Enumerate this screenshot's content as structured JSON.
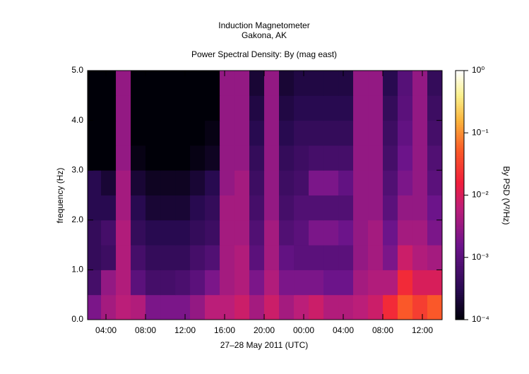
{
  "chart_data": {
    "type": "spectrogram",
    "title": "Induction Magnetometer",
    "subtitle": "Gakona, AK",
    "plot_title": "Power Spectral Density: By (mag east)",
    "x_label": "27–28 May 2011 (UTC)",
    "y_label": "frequency (Hz)",
    "colorbar_label": "By PSD (V²/Hz)",
    "xlim": [
      2.14,
      38
    ],
    "xticks": [
      {
        "value": 4,
        "label": "04:00"
      },
      {
        "value": 8,
        "label": "08:00"
      },
      {
        "value": 12,
        "label": "12:00"
      },
      {
        "value": 16,
        "label": "16:00"
      },
      {
        "value": 20,
        "label": "20:00"
      },
      {
        "value": 24,
        "label": "00:00"
      },
      {
        "value": 28,
        "label": "04:00"
      },
      {
        "value": 32,
        "label": "08:00"
      },
      {
        "value": 36,
        "label": "12:00"
      }
    ],
    "ylim": [
      0,
      5
    ],
    "yticks": [
      {
        "value": 0,
        "label": "0.0"
      },
      {
        "value": 1,
        "label": "1.0"
      },
      {
        "value": 2,
        "label": "2.0"
      },
      {
        "value": 3,
        "label": "3.0"
      },
      {
        "value": 4,
        "label": "4.0"
      },
      {
        "value": 5,
        "label": "5.0"
      }
    ],
    "zlim": [
      0.0001,
      1
    ],
    "zscale": "log",
    "zticks": [
      {
        "value": 0.0001,
        "label": "10⁻⁴"
      },
      {
        "value": 0.001,
        "label": "10⁻³"
      },
      {
        "value": 0.01,
        "label": "10⁻²"
      },
      {
        "value": 0.1,
        "label": "10⁻¹"
      },
      {
        "value": 1,
        "label": "10⁰"
      }
    ],
    "xbins": [
      2,
      3.5,
      5,
      6.5,
      8,
      9.5,
      11,
      12.5,
      14,
      15.5,
      17,
      18.5,
      20,
      21.5,
      23,
      24.5,
      26,
      27.5,
      29,
      30.5,
      32,
      33.5,
      35,
      36.5,
      38
    ],
    "ybins": [
      0,
      0.5,
      1,
      1.5,
      2,
      2.5,
      3,
      3.5,
      4,
      4.5,
      5
    ],
    "z": [
      [
        0.002,
        0.004,
        0.006,
        0.005,
        0.002,
        0.002,
        0.002,
        0.003,
        0.006,
        0.006,
        0.008,
        0.004,
        0.008,
        0.004,
        0.006,
        0.008,
        0.005,
        0.005,
        0.006,
        0.008,
        0.02,
        0.05,
        0.03,
        0.05
      ],
      [
        0.0006,
        0.003,
        0.005,
        0.001,
        0.0006,
        0.0006,
        0.0007,
        0.001,
        0.002,
        0.004,
        0.005,
        0.002,
        0.005,
        0.002,
        0.002,
        0.002,
        0.0015,
        0.0015,
        0.004,
        0.005,
        0.005,
        0.02,
        0.01,
        0.01
      ],
      [
        0.0004,
        0.0005,
        0.005,
        0.0006,
        0.0004,
        0.0004,
        0.0004,
        0.0006,
        0.0008,
        0.004,
        0.005,
        0.001,
        0.004,
        0.0012,
        0.001,
        0.001,
        0.001,
        0.001,
        0.003,
        0.004,
        0.002,
        0.008,
        0.005,
        0.004
      ],
      [
        0.0004,
        0.0006,
        0.005,
        0.0004,
        0.0003,
        0.0003,
        0.0003,
        0.0004,
        0.0005,
        0.004,
        0.004,
        0.0008,
        0.004,
        0.0008,
        0.001,
        0.002,
        0.002,
        0.0015,
        0.003,
        0.004,
        0.0015,
        0.004,
        0.004,
        0.002
      ],
      [
        0.0003,
        0.0003,
        0.004,
        0.0003,
        0.0002,
        0.0002,
        0.0002,
        0.0003,
        0.0004,
        0.004,
        0.004,
        0.0006,
        0.003,
        0.0006,
        0.0008,
        0.0008,
        0.0008,
        0.0008,
        0.003,
        0.003,
        0.001,
        0.003,
        0.003,
        0.0015
      ],
      [
        0.0003,
        0.0002,
        0.004,
        0.0002,
        0.00015,
        0.00015,
        0.00015,
        0.0002,
        0.0003,
        0.003,
        0.004,
        0.0005,
        0.003,
        0.0005,
        0.0006,
        0.002,
        0.002,
        0.0012,
        0.003,
        0.003,
        0.0008,
        0.002,
        0.003,
        0.001
      ],
      [
        0.0001,
        0.0001,
        0.003,
        0.00012,
        0.0001,
        0.0001,
        0.0001,
        0.00012,
        0.00015,
        0.003,
        0.003,
        0.0004,
        0.003,
        0.0004,
        0.0005,
        0.0006,
        0.0006,
        0.0006,
        0.003,
        0.003,
        0.0006,
        0.0015,
        0.003,
        0.0008
      ],
      [
        0.0001,
        0.0001,
        0.003,
        0.0001,
        0.0001,
        0.0001,
        0.0001,
        0.0001,
        0.00012,
        0.003,
        0.003,
        0.0003,
        0.003,
        0.0003,
        0.0004,
        0.0004,
        0.0004,
        0.0004,
        0.003,
        0.003,
        0.0005,
        0.0012,
        0.003,
        0.0006
      ],
      [
        0.0001,
        0.0001,
        0.003,
        0.0001,
        0.0001,
        0.0001,
        0.0001,
        0.0001,
        0.0001,
        0.003,
        0.003,
        0.00025,
        0.003,
        0.00025,
        0.0003,
        0.0003,
        0.0003,
        0.0003,
        0.003,
        0.003,
        0.0004,
        0.001,
        0.003,
        0.0005
      ],
      [
        0.0001,
        0.0001,
        0.003,
        0.0001,
        0.0001,
        0.0001,
        0.0001,
        0.0001,
        0.0001,
        0.003,
        0.003,
        0.0002,
        0.003,
        0.0002,
        0.00025,
        0.00025,
        0.00025,
        0.00025,
        0.003,
        0.003,
        0.0003,
        0.0009,
        0.003,
        0.0004
      ]
    ]
  }
}
